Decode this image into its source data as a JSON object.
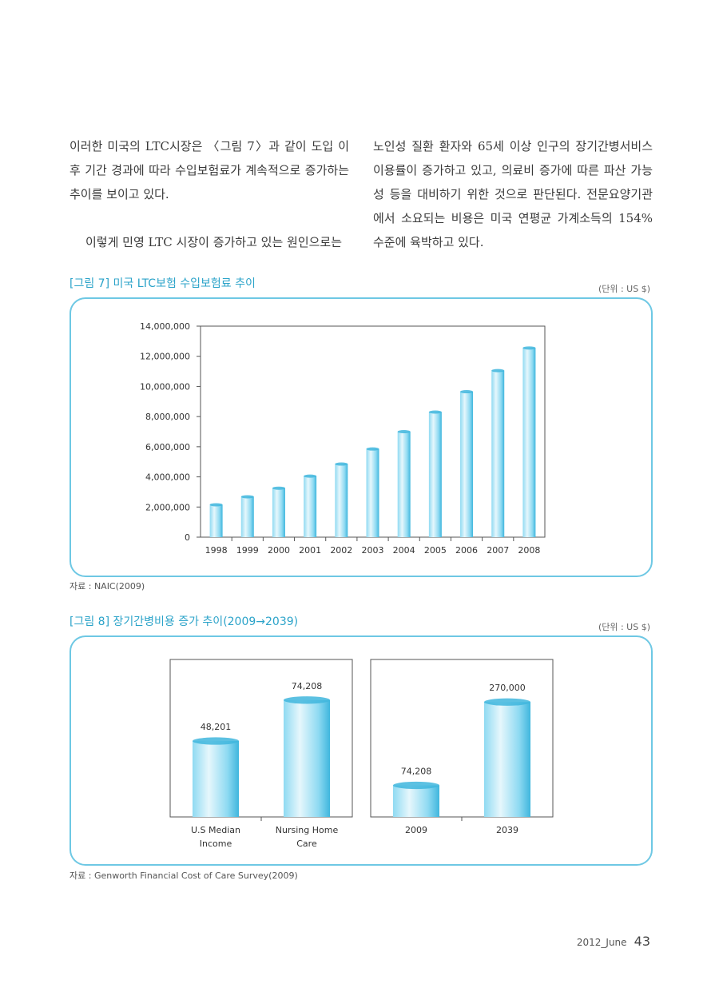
{
  "body": {
    "left_col": [
      "이러한 미국의 LTC시장은 〈그림 7〉과 같이 도입 이후 기간 경과에 따라 수입보험료가 계속적으로 증가하는 추이를 보이고 있다.",
      "이렇게 민영 LTC 시장이 증가하고 있는 원인으로는"
    ],
    "right_col": "노인성 질환 환자와 65세 이상 인구의 장기간병서비스 이용률이 증가하고 있고, 의료비 증가에 따른 파산 가능성 등을 대비하기 위한 것으로 판단된다. 전문요양기관에서 소요되는 비용은 미국 연평균 가계소득의 154% 수준에 육박하고 있다."
  },
  "fig7": {
    "title": "[그림 7] 미국 LTC보험 수입보험료 추이",
    "unit": "(단위 : US $)",
    "source": "자료 : NAIC(2009)"
  },
  "fig8": {
    "title": "[그림 8] 장기간병비용 증가 추이(2009→2039)",
    "unit": "(단위 : US $)",
    "source": "자료 : Genworth Financial Cost of Care Survey(2009)"
  },
  "footer": {
    "tag": "2012_June",
    "page": "43"
  },
  "colors": {
    "accent": "#2ba3c9",
    "frame": "#6ec8e4",
    "bar_light": "#e6f7fc",
    "bar_mid": "#8fdaf2",
    "bar_dark": "#3fb6dd"
  },
  "chart_data": [
    {
      "type": "bar",
      "categories": [
        "1998",
        "1999",
        "2000",
        "2001",
        "2002",
        "2003",
        "2004",
        "2005",
        "2006",
        "2007",
        "2008"
      ],
      "values": [
        2150000,
        2680000,
        3250000,
        4050000,
        4850000,
        5850000,
        7000000,
        8300000,
        9650000,
        11050000,
        12550000
      ],
      "ylim": [
        0,
        14000000
      ],
      "yticks": [
        0,
        2000000,
        4000000,
        6000000,
        8000000,
        10000000,
        12000000,
        14000000
      ],
      "ytick_labels": [
        "0",
        "2,000,000",
        "4,000,000",
        "6,000,000",
        "8,000,000",
        "10,000,000",
        "12,000,000",
        "14,000,000"
      ],
      "grid": false
    },
    {
      "type": "bar",
      "categories": [
        "U.S Median Income",
        "Nursing Home Care"
      ],
      "category_lines": [
        [
          "U.S Median",
          "Income"
        ],
        [
          "Nursing Home",
          "Care"
        ]
      ],
      "values": [
        48201,
        74208
      ],
      "value_labels": [
        "48,201",
        "74,208"
      ],
      "ylim": [
        0,
        100000
      ]
    },
    {
      "type": "bar",
      "categories": [
        "2009",
        "2039"
      ],
      "category_lines": [
        [
          "2009"
        ],
        [
          "2039"
        ]
      ],
      "values": [
        74208,
        270000
      ],
      "value_labels": [
        "74,208",
        "270,000"
      ],
      "ylim": [
        0,
        370000
      ]
    }
  ]
}
